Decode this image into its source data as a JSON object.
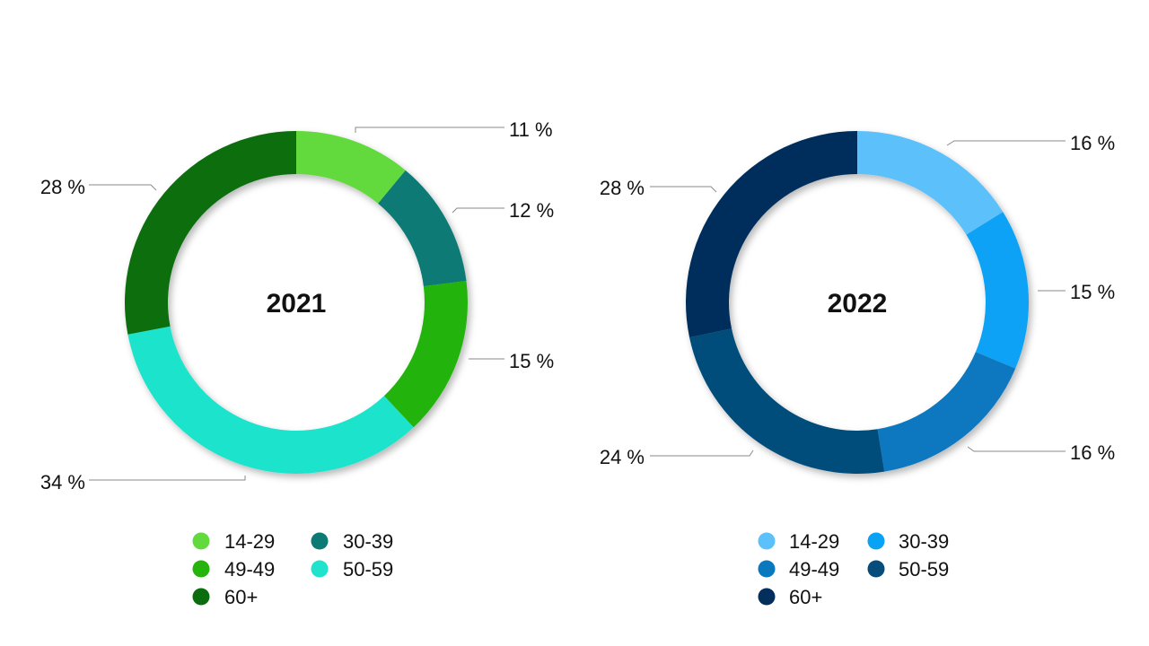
{
  "chart_data": [
    {
      "type": "donut",
      "center_label": "2021",
      "categories": [
        "14-29",
        "30-39",
        "49-49",
        "50-59",
        "60+"
      ],
      "values": [
        11,
        12,
        15,
        34,
        28
      ],
      "value_labels": [
        "11 %",
        "12 %",
        "15 %",
        "34 %",
        "28 %"
      ],
      "colors": [
        "#62d93c",
        "#0d7a74",
        "#24b40c",
        "#1fe3cc",
        "#0a6e0f"
      ],
      "legend": [
        {
          "label": "14-29",
          "color": "#62d93c"
        },
        {
          "label": "30-39",
          "color": "#0d7a74"
        },
        {
          "label": "49-49",
          "color": "#24b40c"
        },
        {
          "label": "50-59",
          "color": "#1fe3cc"
        },
        {
          "label": "60+",
          "color": "#0a6e0f"
        }
      ],
      "legend_position": "bottom"
    },
    {
      "type": "donut",
      "center_label": "2022",
      "categories": [
        "14-29",
        "30-39",
        "49-49",
        "50-59",
        "60+"
      ],
      "values": [
        16,
        15,
        16,
        24,
        28
      ],
      "value_labels": [
        "16 %",
        "15 %",
        "16 %",
        "24 %",
        "28 %"
      ],
      "colors": [
        "#5cc0fb",
        "#0aa2f5",
        "#0a78bf",
        "#064d7b",
        "#042f5c"
      ],
      "legend": [
        {
          "label": "14-29",
          "color": "#5cc0fb"
        },
        {
          "label": "30-39",
          "color": "#0aa2f5"
        },
        {
          "label": "49-49",
          "color": "#0a78bf"
        },
        {
          "label": "50-59",
          "color": "#064d7b"
        },
        {
          "label": "60+",
          "color": "#042f5c"
        }
      ],
      "legend_position": "bottom"
    }
  ]
}
